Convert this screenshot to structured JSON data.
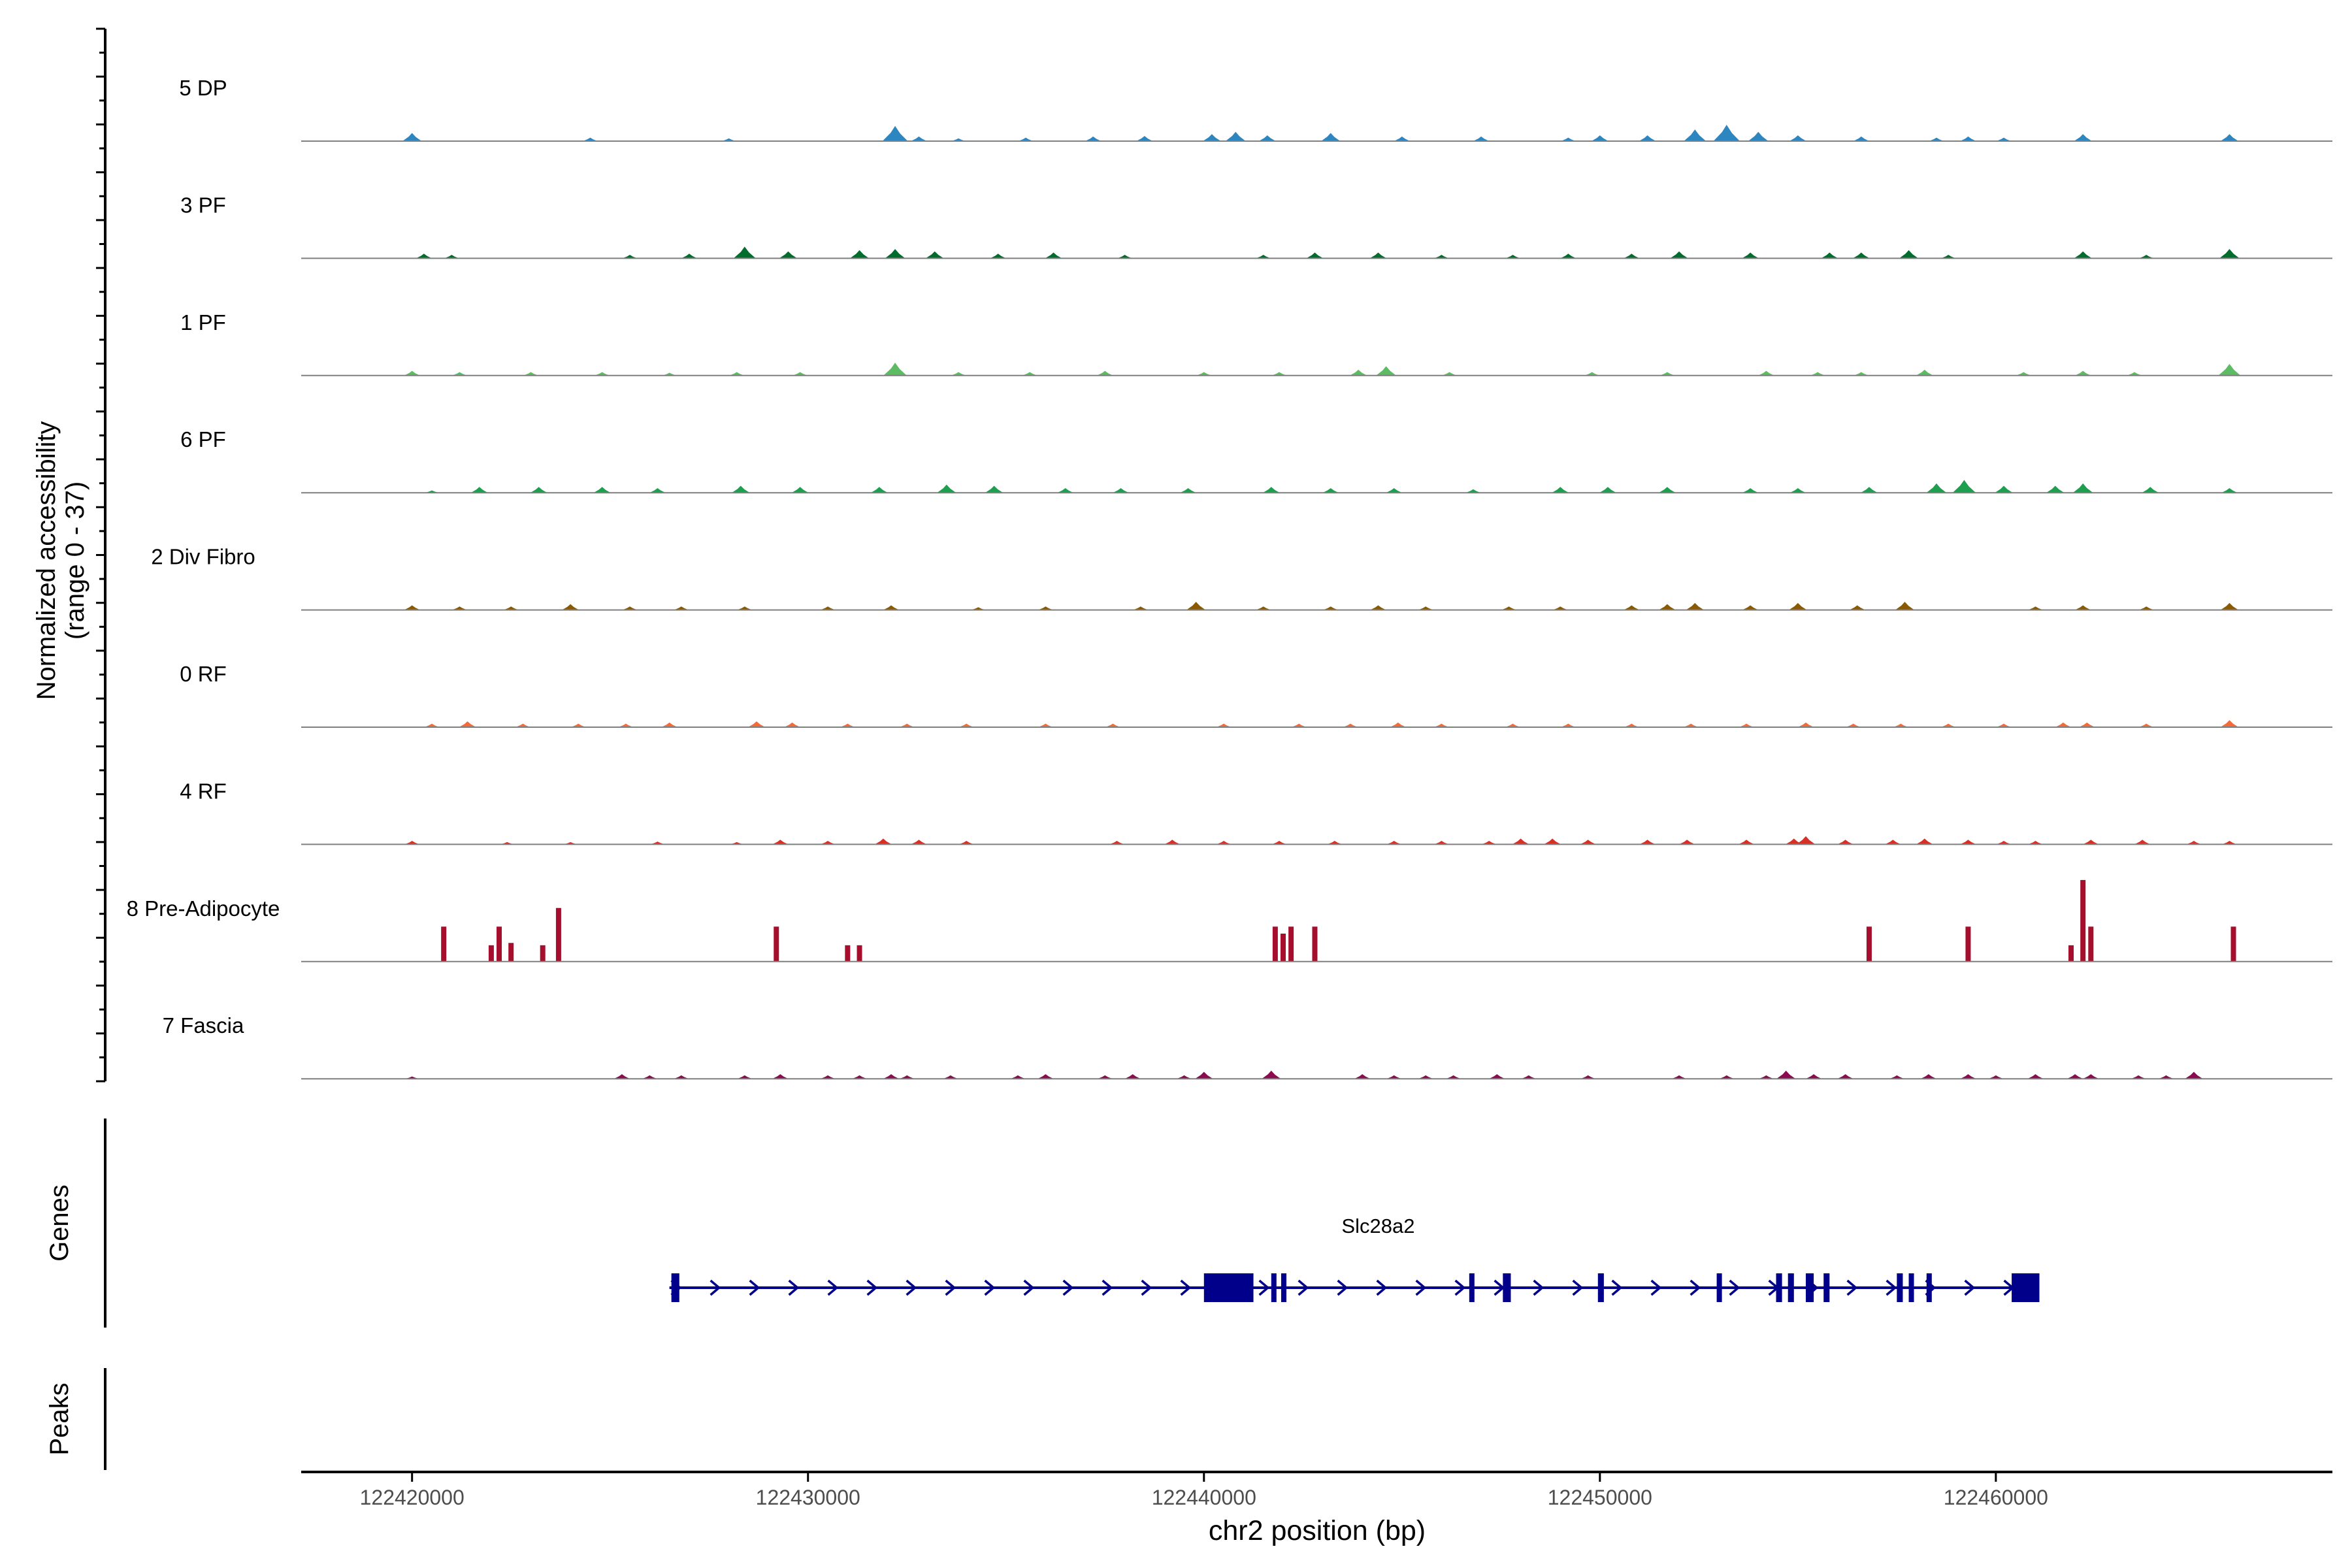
{
  "chart_data": {
    "type": "area",
    "title": "",
    "xlabel": "chr2 position (bp)",
    "ylabel_line1": "Normalized accessibility",
    "ylabel_line2": "(range 0 - 37)",
    "ylim": [
      0,
      37
    ],
    "xlim": [
      122417200,
      122468500
    ],
    "x_ticks": [
      122420000,
      122430000,
      122440000,
      122450000,
      122460000
    ],
    "x_tick_labels": [
      "122420000",
      "122430000",
      "122440000",
      "122450000",
      "122460000"
    ],
    "genes_label": "Genes",
    "peaks_label": "Peaks",
    "tracks": [
      {
        "name": "5 DP",
        "color": "#2E86C1",
        "peaks": [
          [
            122420000,
            3.5
          ],
          [
            122424500,
            1.5
          ],
          [
            122428000,
            1.2
          ],
          [
            122432200,
            6.5
          ],
          [
            122432800,
            2
          ],
          [
            122433800,
            1.2
          ],
          [
            122435500,
            1.5
          ],
          [
            122437200,
            2
          ],
          [
            122438500,
            2.2
          ],
          [
            122440200,
            3
          ],
          [
            122440800,
            4
          ],
          [
            122441600,
            2.5
          ],
          [
            122443200,
            3.5
          ],
          [
            122445000,
            2
          ],
          [
            122447000,
            2
          ],
          [
            122449200,
            1.5
          ],
          [
            122450000,
            2.5
          ],
          [
            122451200,
            2.5
          ],
          [
            122452400,
            5
          ],
          [
            122453200,
            7
          ],
          [
            122454000,
            4
          ],
          [
            122455000,
            2.5
          ],
          [
            122456600,
            2
          ],
          [
            122458500,
            1.5
          ],
          [
            122459300,
            2
          ],
          [
            122460200,
            1.5
          ],
          [
            122462200,
            3
          ],
          [
            122465900,
            3
          ]
        ]
      },
      {
        "name": "3 PF",
        "color": "#006D2C",
        "peaks": [
          [
            122420300,
            2
          ],
          [
            122421000,
            1.5
          ],
          [
            122425500,
            1.5
          ],
          [
            122427000,
            2
          ],
          [
            122428400,
            5
          ],
          [
            122429500,
            3
          ],
          [
            122431300,
            3.5
          ],
          [
            122432200,
            4
          ],
          [
            122433200,
            3
          ],
          [
            122434800,
            2
          ],
          [
            122436200,
            2.5
          ],
          [
            122438000,
            1.5
          ],
          [
            122441500,
            1.5
          ],
          [
            122442800,
            2.5
          ],
          [
            122444400,
            2.5
          ],
          [
            122446000,
            1.5
          ],
          [
            122447800,
            1.5
          ],
          [
            122449200,
            2
          ],
          [
            122450800,
            2
          ],
          [
            122452000,
            3
          ],
          [
            122453800,
            2.5
          ],
          [
            122455800,
            2.5
          ],
          [
            122456600,
            2.5
          ],
          [
            122457800,
            3.5
          ],
          [
            122458800,
            1.5
          ],
          [
            122462200,
            3
          ],
          [
            122463800,
            1.5
          ],
          [
            122465900,
            4
          ]
        ]
      },
      {
        "name": "1 PF",
        "color": "#5DBB63",
        "peaks": [
          [
            122420000,
            2
          ],
          [
            122421200,
            1.5
          ],
          [
            122423000,
            1.5
          ],
          [
            122424800,
            1.5
          ],
          [
            122426500,
            1.2
          ],
          [
            122428200,
            1.5
          ],
          [
            122429800,
            1.5
          ],
          [
            122432200,
            5.5
          ],
          [
            122433800,
            1.5
          ],
          [
            122435600,
            1.5
          ],
          [
            122437500,
            2
          ],
          [
            122440000,
            1.5
          ],
          [
            122441900,
            1.5
          ],
          [
            122443900,
            2.5
          ],
          [
            122444600,
            4
          ],
          [
            122446200,
            1.5
          ],
          [
            122449800,
            1.5
          ],
          [
            122451700,
            1.5
          ],
          [
            122454200,
            2
          ],
          [
            122455500,
            1.5
          ],
          [
            122456600,
            1.5
          ],
          [
            122458200,
            2.5
          ],
          [
            122460700,
            1.5
          ],
          [
            122462200,
            2
          ],
          [
            122463500,
            1.5
          ],
          [
            122465900,
            5
          ]
        ]
      },
      {
        "name": "6 PF",
        "color": "#1E9E4F",
        "peaks": [
          [
            122420500,
            1
          ],
          [
            122421700,
            2.5
          ],
          [
            122423200,
            2.5
          ],
          [
            122424800,
            2.5
          ],
          [
            122426200,
            2
          ],
          [
            122428300,
            3
          ],
          [
            122429800,
            2.5
          ],
          [
            122431800,
            2.5
          ],
          [
            122433500,
            3.5
          ],
          [
            122434700,
            3
          ],
          [
            122436500,
            2
          ],
          [
            122437900,
            2
          ],
          [
            122439600,
            2
          ],
          [
            122441700,
            2.5
          ],
          [
            122443200,
            2
          ],
          [
            122444800,
            2
          ],
          [
            122446800,
            1.5
          ],
          [
            122449000,
            2.5
          ],
          [
            122450200,
            2.5
          ],
          [
            122451700,
            2.5
          ],
          [
            122453800,
            2
          ],
          [
            122455000,
            2
          ],
          [
            122456800,
            2.5
          ],
          [
            122458500,
            4
          ],
          [
            122459200,
            5.5
          ],
          [
            122460200,
            3
          ],
          [
            122461500,
            3
          ],
          [
            122462200,
            4
          ],
          [
            122463900,
            2.5
          ],
          [
            122465900,
            2
          ]
        ]
      },
      {
        "name": "2 Div Fibro",
        "color": "#8B5A00",
        "peaks": [
          [
            122420000,
            2
          ],
          [
            122421200,
            1.5
          ],
          [
            122422500,
            1.5
          ],
          [
            122424000,
            2.5
          ],
          [
            122425500,
            1.5
          ],
          [
            122426800,
            1.5
          ],
          [
            122428400,
            1.5
          ],
          [
            122430500,
            1.5
          ],
          [
            122432100,
            2
          ],
          [
            122434300,
            1.2
          ],
          [
            122436000,
            1.5
          ],
          [
            122438400,
            1.5
          ],
          [
            122439800,
            3.5
          ],
          [
            122441500,
            1.5
          ],
          [
            122443200,
            1.5
          ],
          [
            122444400,
            2
          ],
          [
            122445600,
            1.5
          ],
          [
            122447700,
            1.5
          ],
          [
            122449000,
            1.5
          ],
          [
            122450800,
            2
          ],
          [
            122451700,
            2.5
          ],
          [
            122452400,
            3
          ],
          [
            122453800,
            2
          ],
          [
            122455000,
            3
          ],
          [
            122456500,
            2
          ],
          [
            122457700,
            3.5
          ],
          [
            122461000,
            1.5
          ],
          [
            122462200,
            2
          ],
          [
            122463800,
            1.5
          ],
          [
            122465900,
            3
          ]
        ]
      },
      {
        "name": "0 RF",
        "color": "#F26B38",
        "peaks": [
          [
            122420500,
            1.5
          ],
          [
            122421400,
            2.5
          ],
          [
            122422800,
            1.5
          ],
          [
            122424200,
            1.5
          ],
          [
            122425400,
            1.5
          ],
          [
            122426500,
            2
          ],
          [
            122428700,
            2.5
          ],
          [
            122429600,
            2
          ],
          [
            122431000,
            1.5
          ],
          [
            122432500,
            1.5
          ],
          [
            122434000,
            1.5
          ],
          [
            122436000,
            1.5
          ],
          [
            122437700,
            1.5
          ],
          [
            122440500,
            1.5
          ],
          [
            122442400,
            1.5
          ],
          [
            122443700,
            1.5
          ],
          [
            122444900,
            2
          ],
          [
            122446000,
            1.5
          ],
          [
            122447800,
            1.5
          ],
          [
            122449200,
            1.5
          ],
          [
            122450800,
            1.5
          ],
          [
            122452300,
            1.5
          ],
          [
            122453700,
            1.5
          ],
          [
            122455200,
            2
          ],
          [
            122456400,
            1.5
          ],
          [
            122457600,
            1.5
          ],
          [
            122458800,
            1.5
          ],
          [
            122460200,
            1.5
          ],
          [
            122461700,
            2
          ],
          [
            122462300,
            2
          ],
          [
            122463800,
            1.5
          ],
          [
            122465900,
            3
          ]
        ]
      },
      {
        "name": "4 RF",
        "color": "#D73027",
        "peaks": [
          [
            122420000,
            1.5
          ],
          [
            122422400,
            1
          ],
          [
            122424000,
            1
          ],
          [
            122426200,
            1.2
          ],
          [
            122428200,
            1
          ],
          [
            122429300,
            2
          ],
          [
            122430500,
            1.5
          ],
          [
            122431900,
            2.5
          ],
          [
            122432800,
            2
          ],
          [
            122434000,
            1.5
          ],
          [
            122437800,
            1.5
          ],
          [
            122439200,
            2
          ],
          [
            122440500,
            1.5
          ],
          [
            122441900,
            1.5
          ],
          [
            122443300,
            1.5
          ],
          [
            122444800,
            1.5
          ],
          [
            122446000,
            1.5
          ],
          [
            122447200,
            1.5
          ],
          [
            122448000,
            2.5
          ],
          [
            122448800,
            2.5
          ],
          [
            122449700,
            2
          ],
          [
            122451200,
            2
          ],
          [
            122452200,
            2
          ],
          [
            122453700,
            2
          ],
          [
            122454900,
            2.5
          ],
          [
            122455200,
            3.5
          ],
          [
            122456200,
            2
          ],
          [
            122457400,
            2
          ],
          [
            122458200,
            2.5
          ],
          [
            122459300,
            2
          ],
          [
            122460200,
            1.5
          ],
          [
            122461000,
            1.5
          ],
          [
            122462400,
            2
          ],
          [
            122463700,
            2
          ],
          [
            122465000,
            1.5
          ],
          [
            122465900,
            1.5
          ]
        ]
      },
      {
        "name": "8 Pre-Adipocyte",
        "color": "#A50F2D",
        "peaks": [
          [
            122420800,
            15
          ],
          [
            122422000,
            7
          ],
          [
            122422200,
            15
          ],
          [
            122422500,
            8
          ],
          [
            122423300,
            7
          ],
          [
            122423700,
            23
          ],
          [
            122429200,
            15
          ],
          [
            122431000,
            7
          ],
          [
            122431300,
            7
          ],
          [
            122441800,
            15
          ],
          [
            122442000,
            12
          ],
          [
            122442200,
            15
          ],
          [
            122442800,
            15
          ],
          [
            122456800,
            15
          ],
          [
            122459300,
            15
          ],
          [
            122461900,
            7
          ],
          [
            122462200,
            35
          ],
          [
            122462400,
            15
          ],
          [
            122466000,
            15
          ]
        ]
      },
      {
        "name": "7 Fascia",
        "color": "#8B0A50",
        "peaks": [
          [
            122420000,
            1
          ],
          [
            122425300,
            2
          ],
          [
            122426000,
            1.5
          ],
          [
            122426800,
            1.5
          ],
          [
            122428400,
            1.5
          ],
          [
            122429300,
            2
          ],
          [
            122430500,
            1.5
          ],
          [
            122431300,
            1.5
          ],
          [
            122432100,
            2
          ],
          [
            122432500,
            1.5
          ],
          [
            122433600,
            1.5
          ],
          [
            122435300,
            1.5
          ],
          [
            122436000,
            2
          ],
          [
            122437500,
            1.5
          ],
          [
            122438200,
            2
          ],
          [
            122439500,
            1.5
          ],
          [
            122440000,
            3
          ],
          [
            122441700,
            3.5
          ],
          [
            122444000,
            2
          ],
          [
            122444800,
            1.5
          ],
          [
            122445600,
            1.5
          ],
          [
            122446300,
            1.5
          ],
          [
            122447400,
            2
          ],
          [
            122448200,
            1.5
          ],
          [
            122449700,
            1.5
          ],
          [
            122452000,
            1.5
          ],
          [
            122453200,
            1.5
          ],
          [
            122454200,
            1.5
          ],
          [
            122454700,
            3.5
          ],
          [
            122455400,
            2
          ],
          [
            122456200,
            2
          ],
          [
            122457500,
            1.5
          ],
          [
            122458300,
            2
          ],
          [
            122459300,
            2
          ],
          [
            122460000,
            1.5
          ],
          [
            122461000,
            2
          ],
          [
            122462000,
            2
          ],
          [
            122462400,
            2
          ],
          [
            122463600,
            1.5
          ],
          [
            122464300,
            1.5
          ],
          [
            122465000,
            3
          ]
        ]
      }
    ],
    "gene": {
      "name": "Slc28a2",
      "color": "#00008B",
      "start": 122426500,
      "end": 122461000,
      "strand": "+",
      "exons": [
        [
          122426550,
          122426750
        ],
        [
          122440000,
          122441250
        ],
        [
          122441700,
          122441800
        ],
        [
          122441950,
          122442050
        ],
        [
          122446700,
          122446800
        ],
        [
          122447550,
          122447750
        ],
        [
          122449950,
          122450100
        ],
        [
          122452950,
          122453050
        ],
        [
          122454450,
          122454600
        ],
        [
          122454750,
          122454900
        ],
        [
          122455200,
          122455400
        ],
        [
          122455650,
          122455800
        ],
        [
          122457500,
          122457650
        ],
        [
          122457800,
          122457900
        ],
        [
          122458250,
          122458350
        ],
        [
          122460400,
          122461100
        ]
      ]
    }
  }
}
